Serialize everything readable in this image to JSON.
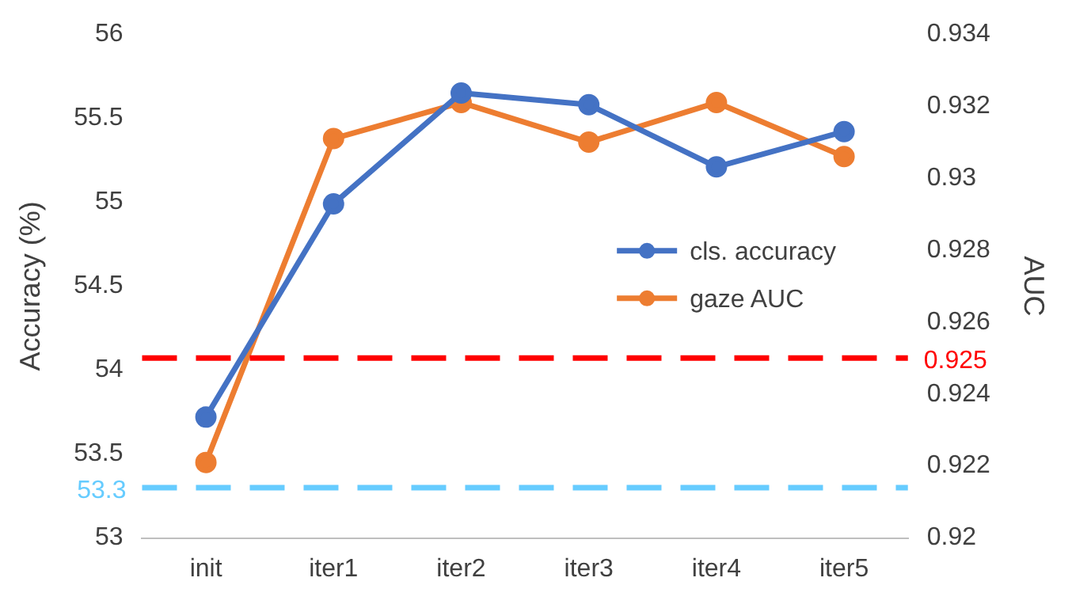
{
  "chart_data": {
    "type": "line",
    "ylabel": "Accuracy (%)",
    "y2label": "AUC",
    "categories": [
      "init",
      "iter1",
      "iter2",
      "iter3",
      "iter4",
      "iter5"
    ],
    "series": [
      {
        "name": "cls. accuracy",
        "color": "#4472c4",
        "values": [
          53.72,
          54.99,
          55.65,
          55.58,
          55.21,
          55.42
        ]
      },
      {
        "name": "gaze AUC",
        "color": "#ed7d31",
        "axis": "y2",
        "values": [
          0.9221,
          0.9311,
          0.9321,
          0.931,
          0.9321,
          0.9306
        ]
      }
    ],
    "ylim": [
      53,
      56
    ],
    "yticks": [
      53,
      53.5,
      54,
      54.5,
      55,
      55.5,
      56
    ],
    "y2lim": [
      0.92,
      0.934
    ],
    "y2ticks": [
      0.92,
      0.922,
      0.924,
      0.926,
      0.928,
      0.93,
      0.932,
      0.934
    ],
    "ref_lines": [
      {
        "axis": "y2",
        "value": 0.925,
        "label": "0.925",
        "color": "#ff0000",
        "line_style": "dashed"
      },
      {
        "axis": "y",
        "value": 53.3,
        "label": "53.3",
        "color": "#66ccff",
        "line_style": "dashed"
      }
    ],
    "marker": "circle",
    "line_style": "solid",
    "grid": false,
    "legend": "right"
  }
}
